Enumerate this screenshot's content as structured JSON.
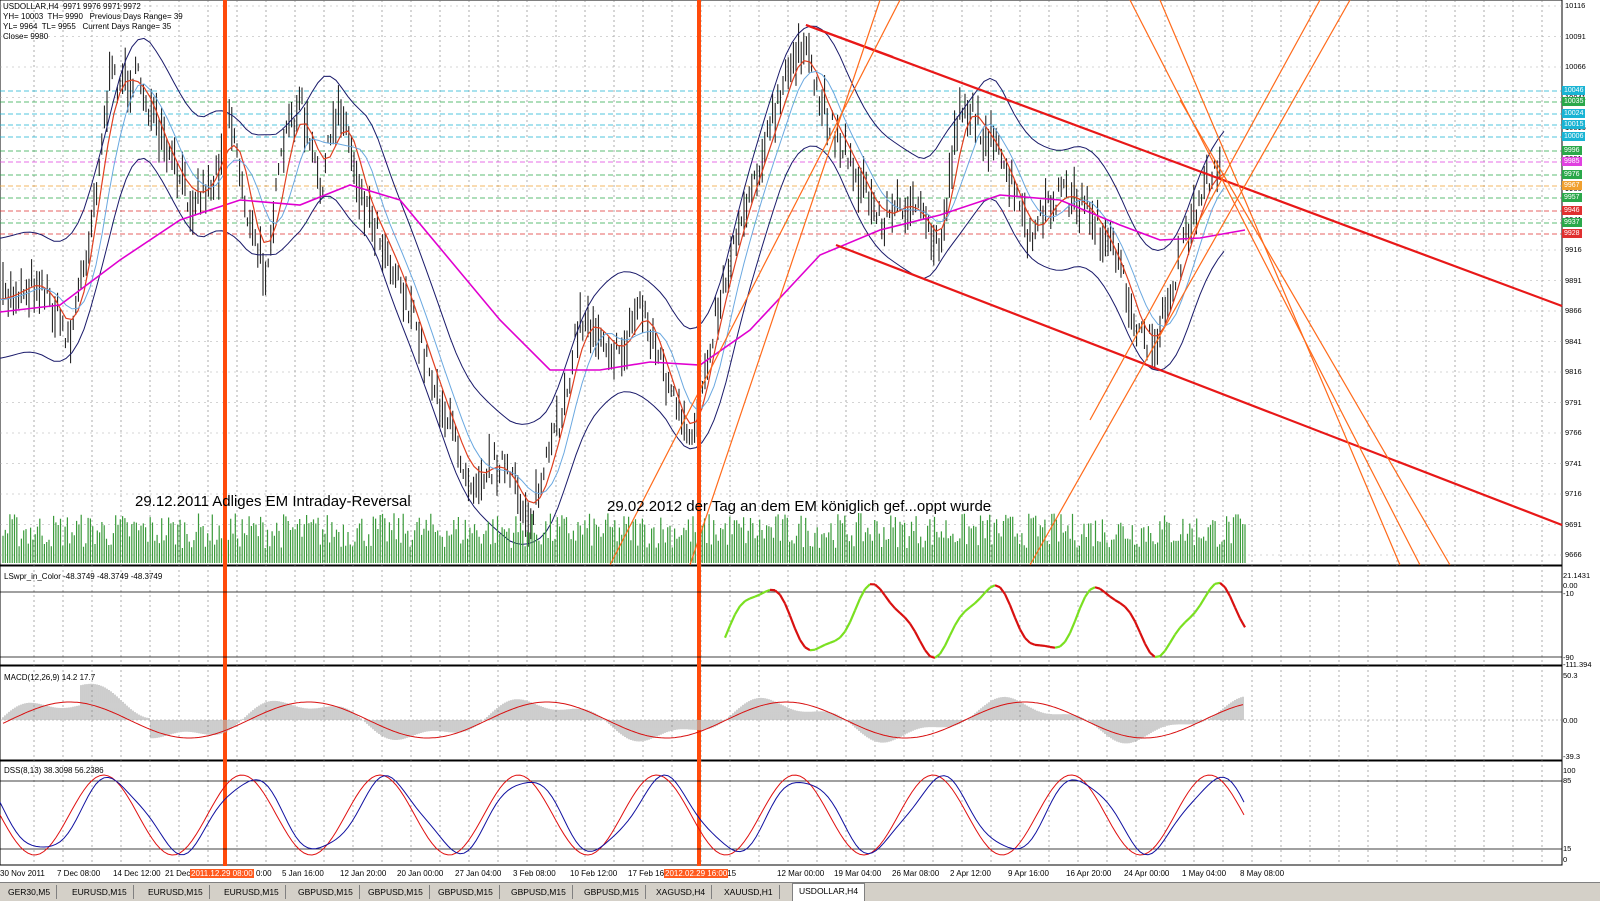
{
  "window": {
    "title": "USDOLLAR,H4  9971 9976 9971 9972",
    "info_lines": [
      "YH= 10003  TH= 9990   Previous Days Range= 39",
      "YL= 9964  TL= 9955   Current Days Range= 35",
      "Close= 9980"
    ]
  },
  "annotations": [
    "29.12.2011   Adliges EM Intraday-Reversal",
    "29.02.2012   der Tag an dem EM königlich gef...oppt wurde"
  ],
  "price_axis": {
    "labels": [
      "10116",
      "10091",
      "10066",
      "10041",
      "10016",
      "9991",
      "9966",
      "9941",
      "9916",
      "9891",
      "9866",
      "9841",
      "9816",
      "9791",
      "9766",
      "9741",
      "9716",
      "9691",
      "9666"
    ],
    "tags": [
      {
        "value": "10046",
        "color": "#19b4d4"
      },
      {
        "value": "10035",
        "color": "#2aa84a"
      },
      {
        "value": "10024",
        "color": "#19b4d4"
      },
      {
        "value": "10015",
        "color": "#19b4d4"
      },
      {
        "value": "10006",
        "color": "#19b4d4"
      },
      {
        "value": "9996",
        "color": "#2aa84a"
      },
      {
        "value": "9985",
        "color": "#e040e0"
      },
      {
        "value": "9976",
        "color": "#2aa84a"
      },
      {
        "value": "9967",
        "color": "#f0a030"
      },
      {
        "value": "9957",
        "color": "#2aa84a"
      },
      {
        "value": "9946",
        "color": "#e03030"
      },
      {
        "value": "9937",
        "color": "#2aa84a"
      },
      {
        "value": "9928",
        "color": "#e03030"
      }
    ]
  },
  "indicators": {
    "lswpr": {
      "label": "LSwpr_in_Color -48.3749 -48.3749 -48.3749",
      "scale": [
        "21.1431",
        "0.00",
        "-10",
        "-90",
        "-111.394"
      ]
    },
    "macd": {
      "label": "MACD(12,26,9) 14.2 17.7",
      "scale": [
        "50.3",
        "0.00",
        "-39.3"
      ]
    },
    "dss": {
      "label": "DSS(8,13) 38.3098 56.2386",
      "scale": [
        "100",
        "85",
        "15",
        "0"
      ]
    }
  },
  "time_axis": {
    "ticks": [
      "30 Nov 2011",
      "7 Dec 08:00",
      "14 Dec 12:00",
      "21 Dec",
      "5 Jan 16:00",
      "12 Jan 20:00",
      "20 Jan 00:00",
      "27 Jan 04:00",
      "3 Feb 08:00",
      "10 Feb 12:00",
      "17 Feb 16:00",
      "Mar 21:15",
      "12 Mar 00:00",
      "19 Mar 04:00",
      "26 Mar 08:00",
      "2 Apr 12:00",
      "9 Apr 16:00",
      "16 Apr 20:00",
      "24 Apr 00:00",
      "1 May 04:00",
      "8 May 08:00"
    ],
    "highlight_1": "2011.12.29 08:00",
    "highlight_2": "2012.02.29 16:00",
    "after_highlight_1": "0:00"
  },
  "tabs": [
    {
      "label": "GER30,M5",
      "active": false
    },
    {
      "label": "EURUSD,M15",
      "active": false
    },
    {
      "label": "EURUSD,M15",
      "active": false
    },
    {
      "label": "EURUSD,M15",
      "active": false
    },
    {
      "label": "GBPUSD,M15",
      "active": false
    },
    {
      "label": "GBPUSD,M15",
      "active": false
    },
    {
      "label": "GBPUSD,M15",
      "active": false
    },
    {
      "label": "GBPUSD,M15",
      "active": false
    },
    {
      "label": "GBPUSD,M15",
      "active": false
    },
    {
      "label": "XAGUSD,H4",
      "active": false
    },
    {
      "label": "XAUUSD,H1",
      "active": false
    },
    {
      "label": "USDOLLAR,H4",
      "active": true
    }
  ],
  "colors": {
    "highlight": "#ff4a0a",
    "channel": "#e81818",
    "fan": "#ff6a1a",
    "ma_long": "#e000d0",
    "volume": "#3a9a3a",
    "bands": "#1a1a6a"
  }
}
